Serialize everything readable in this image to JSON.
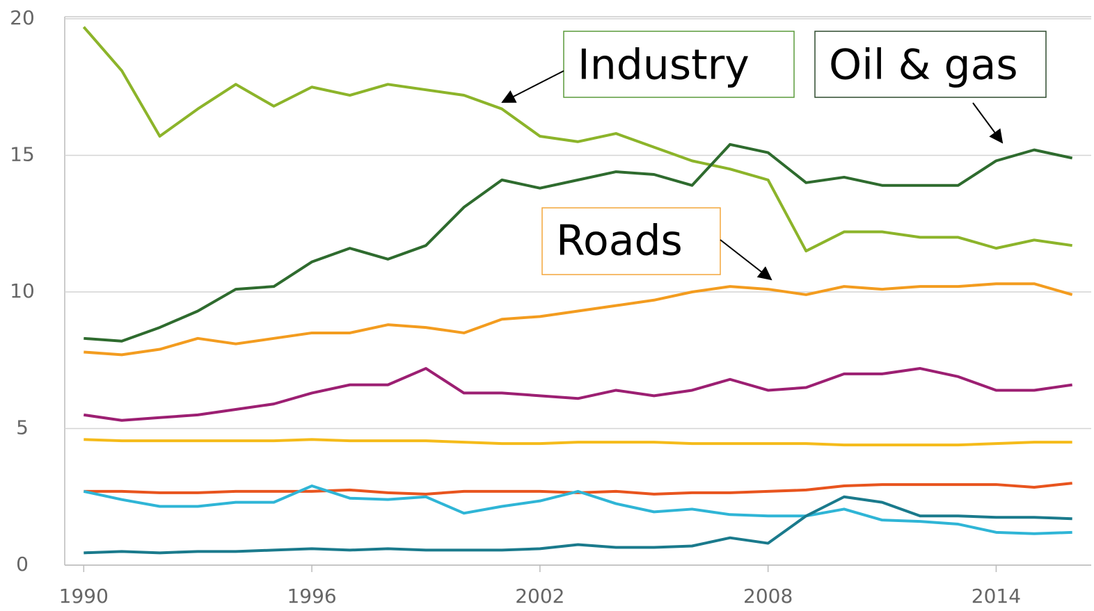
{
  "chart_data": {
    "type": "line",
    "x": [
      1990,
      1991,
      1992,
      1993,
      1994,
      1995,
      1996,
      1997,
      1998,
      1999,
      2000,
      2001,
      2002,
      2003,
      2004,
      2005,
      2006,
      2007,
      2008,
      2009,
      2010,
      2011,
      2012,
      2013,
      2014,
      2015,
      2016
    ],
    "xlim": [
      1989.5,
      2016.5
    ],
    "xticks": [
      1990,
      1996,
      2002,
      2008,
      2014
    ],
    "ylim": [
      0,
      20
    ],
    "yticks": [
      0,
      5,
      10,
      15,
      20
    ],
    "grid": true,
    "series": [
      {
        "color": "#8cb42a",
        "values": [
          19.7,
          18.1,
          15.7,
          16.7,
          17.6,
          16.8,
          17.5,
          17.2,
          17.6,
          17.4,
          17.2,
          16.7,
          15.7,
          15.5,
          15.8,
          15.3,
          14.8,
          14.5,
          14.1,
          11.5,
          12.2,
          12.2,
          12.0,
          12.0,
          11.6,
          11.9,
          11.7
        ]
      },
      {
        "color": "#2e6b2e",
        "values": [
          8.3,
          8.2,
          8.7,
          9.3,
          10.1,
          10.2,
          11.1,
          11.6,
          11.2,
          11.7,
          13.1,
          14.1,
          13.8,
          14.1,
          14.4,
          14.3,
          13.9,
          15.4,
          15.1,
          14.0,
          14.2,
          13.9,
          13.9,
          13.9,
          14.8,
          15.2,
          14.9
        ]
      },
      {
        "color": "#f39c1f",
        "values": [
          7.8,
          7.7,
          7.9,
          8.3,
          8.1,
          8.3,
          8.5,
          8.5,
          8.8,
          8.7,
          8.5,
          9.0,
          9.1,
          9.3,
          9.5,
          9.7,
          10.0,
          10.2,
          10.1,
          9.9,
          10.2,
          10.1,
          10.2,
          10.2,
          10.3,
          10.3,
          9.9
        ]
      },
      {
        "color": "#9c1f72",
        "values": [
          5.5,
          5.3,
          5.4,
          5.5,
          5.7,
          5.9,
          6.3,
          6.6,
          6.6,
          7.2,
          6.3,
          6.3,
          6.2,
          6.1,
          6.4,
          6.2,
          6.4,
          6.8,
          6.4,
          6.5,
          7.0,
          7.0,
          7.2,
          6.9,
          6.4,
          6.4,
          6.6
        ]
      },
      {
        "color": "#f5bb1a",
        "values": [
          4.6,
          4.55,
          4.55,
          4.55,
          4.55,
          4.55,
          4.6,
          4.55,
          4.55,
          4.55,
          4.5,
          4.45,
          4.45,
          4.5,
          4.5,
          4.5,
          4.45,
          4.45,
          4.45,
          4.45,
          4.4,
          4.4,
          4.4,
          4.4,
          4.45,
          4.5,
          4.5
        ]
      },
      {
        "color": "#e8541e",
        "values": [
          2.7,
          2.7,
          2.65,
          2.65,
          2.7,
          2.7,
          2.7,
          2.75,
          2.65,
          2.6,
          2.7,
          2.7,
          2.7,
          2.65,
          2.7,
          2.6,
          2.65,
          2.65,
          2.7,
          2.75,
          2.9,
          2.95,
          2.95,
          2.95,
          2.95,
          2.85,
          3.0
        ]
      },
      {
        "color": "#2fb5d6",
        "values": [
          2.7,
          2.4,
          2.15,
          2.15,
          2.3,
          2.3,
          2.9,
          2.45,
          2.4,
          2.5,
          1.9,
          2.15,
          2.35,
          2.7,
          2.25,
          1.95,
          2.05,
          1.85,
          1.8,
          1.8,
          2.05,
          1.65,
          1.6,
          1.5,
          1.2,
          1.15,
          1.2
        ]
      },
      {
        "color": "#1a7a8c",
        "values": [
          0.45,
          0.5,
          0.45,
          0.5,
          0.5,
          0.55,
          0.6,
          0.55,
          0.6,
          0.55,
          0.55,
          0.55,
          0.6,
          0.75,
          0.65,
          0.65,
          0.7,
          1.0,
          0.8,
          1.8,
          2.5,
          2.3,
          1.8,
          1.8,
          1.75,
          1.75,
          1.7
        ]
      }
    ],
    "annotations": [
      "Industry",
      "Oil & gas",
      "Roads"
    ]
  }
}
